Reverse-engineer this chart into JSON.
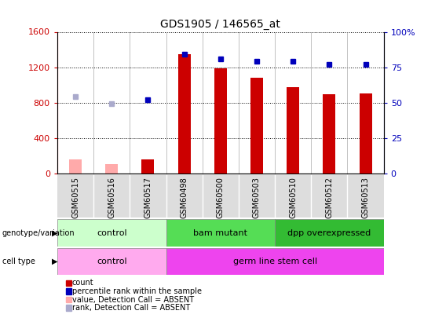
{
  "title": "GDS1905 / 146565_at",
  "samples": [
    "GSM60515",
    "GSM60516",
    "GSM60517",
    "GSM60498",
    "GSM60500",
    "GSM60503",
    "GSM60510",
    "GSM60512",
    "GSM60513"
  ],
  "count_values": [
    155,
    100,
    155,
    1350,
    1190,
    1085,
    975,
    895,
    900
  ],
  "count_absent": [
    true,
    true,
    false,
    false,
    false,
    false,
    false,
    false,
    false
  ],
  "rank_values_pct": [
    54,
    49,
    52,
    84,
    81,
    79,
    79,
    77,
    77
  ],
  "rank_absent": [
    true,
    true,
    false,
    false,
    false,
    false,
    false,
    false,
    false
  ],
  "ylim_left": [
    0,
    1600
  ],
  "ylim_right": [
    0,
    100
  ],
  "yticks_left": [
    0,
    400,
    800,
    1200,
    1600
  ],
  "yticks_right": [
    0,
    25,
    50,
    75,
    100
  ],
  "genotype_groups": [
    {
      "label": "control",
      "start": 0,
      "end": 3,
      "color": "#ccffcc"
    },
    {
      "label": "bam mutant",
      "start": 3,
      "end": 6,
      "color": "#55dd55"
    },
    {
      "label": "dpp overexpressed",
      "start": 6,
      "end": 9,
      "color": "#33bb33"
    }
  ],
  "celltype_groups": [
    {
      "label": "control",
      "start": 0,
      "end": 3,
      "color": "#ffaaee"
    },
    {
      "label": "germ line stem cell",
      "start": 3,
      "end": 9,
      "color": "#ee44ee"
    }
  ],
  "bar_color_present": "#cc0000",
  "bar_color_absent": "#ffaaaa",
  "dot_color_present": "#0000bb",
  "dot_color_absent": "#aaaacc",
  "bar_width": 0.35,
  "legend_items": [
    {
      "label": "count",
      "color": "#cc0000"
    },
    {
      "label": "percentile rank within the sample",
      "color": "#0000bb"
    },
    {
      "label": "value, Detection Call = ABSENT",
      "color": "#ffaaaa"
    },
    {
      "label": "rank, Detection Call = ABSENT",
      "color": "#aaaacc"
    }
  ],
  "fig_width": 5.4,
  "fig_height": 4.05,
  "dpi": 100
}
